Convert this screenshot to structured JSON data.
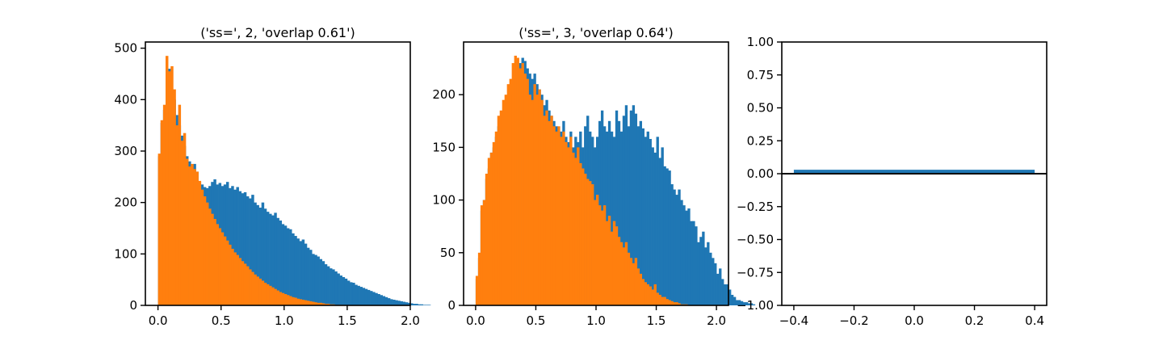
{
  "chart_data": [
    {
      "type": "histogram",
      "title": "('ss=', 2, 'overlap 0.61')",
      "xlim": [
        -0.1,
        2.0
      ],
      "ylim": [
        0,
        512
      ],
      "x_ticks": [
        0.0,
        0.5,
        1.0,
        1.5,
        2.0
      ],
      "x_tick_labels": [
        "0.0",
        "0.5",
        "1.0",
        "1.5",
        "2.0"
      ],
      "y_ticks": [
        0,
        100,
        200,
        300,
        400,
        500
      ],
      "y_tick_labels": [
        "0",
        "100",
        "200",
        "300",
        "400",
        "500"
      ],
      "bin_start": 0.0,
      "bin_width": 0.02,
      "series": [
        {
          "color": "#1f77b4",
          "values": [
            290,
            355,
            380,
            440,
            460,
            420,
            400,
            370,
            350,
            330,
            310,
            290,
            280,
            270,
            275,
            260,
            240,
            235,
            230,
            228,
            232,
            240,
            245,
            235,
            238,
            232,
            235,
            240,
            228,
            232,
            225,
            230,
            222,
            218,
            220,
            212,
            208,
            215,
            200,
            195,
            190,
            200,
            188,
            182,
            178,
            175,
            180,
            170,
            165,
            158,
            155,
            150,
            148,
            140,
            135,
            130,
            125,
            128,
            120,
            112,
            108,
            100,
            98,
            95,
            90,
            86,
            80,
            76,
            72,
            70,
            66,
            62,
            58,
            55,
            52,
            48,
            45,
            44,
            40,
            38,
            36,
            34,
            32,
            30,
            28,
            26,
            24,
            22,
            20,
            18,
            16,
            14,
            12,
            11,
            10,
            9,
            8,
            7,
            6,
            5,
            4,
            3,
            3,
            2,
            2,
            1,
            1,
            1,
            0,
            0
          ]
        },
        {
          "color": "#ff7f0e",
          "values": [
            295,
            360,
            390,
            485,
            455,
            465,
            420,
            350,
            390,
            320,
            335,
            285,
            270,
            275,
            265,
            260,
            242,
            225,
            212,
            200,
            188,
            178,
            168,
            158,
            150,
            142,
            134,
            126,
            118,
            110,
            103,
            98,
            92,
            86,
            81,
            76,
            70,
            65,
            60,
            56,
            52,
            48,
            44,
            41,
            38,
            35,
            32,
            29,
            26,
            24,
            22,
            20,
            18,
            16,
            15,
            13,
            12,
            11,
            10,
            9,
            8,
            7,
            6,
            5,
            5,
            4,
            3,
            3,
            2,
            2,
            1,
            1,
            1,
            1,
            0,
            0,
            0,
            0,
            0,
            0
          ]
        }
      ]
    },
    {
      "type": "histogram",
      "title": "('ss=', 3, 'overlap 0.64')",
      "xlim": [
        -0.1,
        2.1
      ],
      "ylim": [
        0,
        250
      ],
      "x_ticks": [
        0.0,
        0.5,
        1.0,
        1.5,
        2.0
      ],
      "x_tick_labels": [
        "0.0",
        "0.5",
        "1.0",
        "1.5",
        "2.0"
      ],
      "y_ticks": [
        0,
        50,
        100,
        150,
        200
      ],
      "y_tick_labels": [
        "0",
        "50",
        "100",
        "150",
        "200"
      ],
      "bin_start": 0.0,
      "bin_width": 0.02,
      "series": [
        {
          "color": "#1f77b4",
          "values": [
            25,
            45,
            90,
            100,
            120,
            130,
            145,
            150,
            160,
            170,
            175,
            180,
            185,
            195,
            200,
            210,
            215,
            225,
            230,
            235,
            232,
            225,
            220,
            215,
            220,
            210,
            205,
            200,
            190,
            195,
            185,
            180,
            175,
            170,
            160,
            165,
            175,
            160,
            155,
            165,
            150,
            160,
            155,
            165,
            150,
            170,
            180,
            165,
            160,
            150,
            160,
            175,
            185,
            170,
            165,
            175,
            165,
            160,
            185,
            175,
            165,
            180,
            190,
            170,
            185,
            190,
            182,
            170,
            175,
            168,
            160,
            165,
            158,
            150,
            145,
            160,
            140,
            150,
            132,
            130,
            128,
            115,
            110,
            105,
            110,
            100,
            95,
            90,
            92,
            80,
            80,
            75,
            60,
            65,
            70,
            55,
            60,
            50,
            45,
            40,
            30,
            35,
            25,
            20,
            20,
            15,
            10,
            8,
            5,
            5,
            4,
            3,
            3,
            2,
            2,
            1,
            0,
            0,
            0
          ]
        },
        {
          "color": "#ff7f0e",
          "values": [
            28,
            50,
            95,
            100,
            125,
            140,
            145,
            155,
            165,
            180,
            185,
            195,
            200,
            210,
            215,
            230,
            237,
            235,
            225,
            230,
            220,
            215,
            200,
            195,
            210,
            200,
            205,
            195,
            180,
            185,
            175,
            180,
            170,
            165,
            170,
            160,
            165,
            155,
            150,
            160,
            145,
            140,
            150,
            135,
            130,
            125,
            120,
            118,
            115,
            100,
            105,
            95,
            90,
            95,
            80,
            85,
            70,
            80,
            75,
            65,
            60,
            55,
            60,
            50,
            45,
            40,
            45,
            35,
            30,
            25,
            22,
            20,
            18,
            15,
            20,
            12,
            10,
            8,
            8,
            6,
            5,
            4,
            3,
            3,
            2,
            1,
            1,
            1,
            0,
            0,
            0,
            0
          ]
        }
      ]
    },
    {
      "type": "bar",
      "xlim": [
        -0.44,
        0.44
      ],
      "ylim": [
        -1.0,
        1.0
      ],
      "x_ticks": [
        -0.4,
        -0.2,
        0.0,
        0.2,
        0.4
      ],
      "x_tick_labels": [
        "−0.4",
        "−0.2",
        "0.0",
        "0.2",
        "0.4"
      ],
      "y_ticks": [
        -1.0,
        -0.75,
        -0.5,
        -0.25,
        0.0,
        0.25,
        0.5,
        0.75,
        1.0
      ],
      "y_tick_labels": [
        "−1.00",
        "−0.75",
        "−0.50",
        "−0.25",
        "0.00",
        "0.25",
        "0.50",
        "0.75",
        "1.00"
      ],
      "bars": [
        {
          "x": 0.0,
          "width": 0.8,
          "value": 0.03,
          "color": "#1f77b4"
        }
      ],
      "hline": {
        "y": 0.0,
        "color": "#000000"
      }
    }
  ]
}
